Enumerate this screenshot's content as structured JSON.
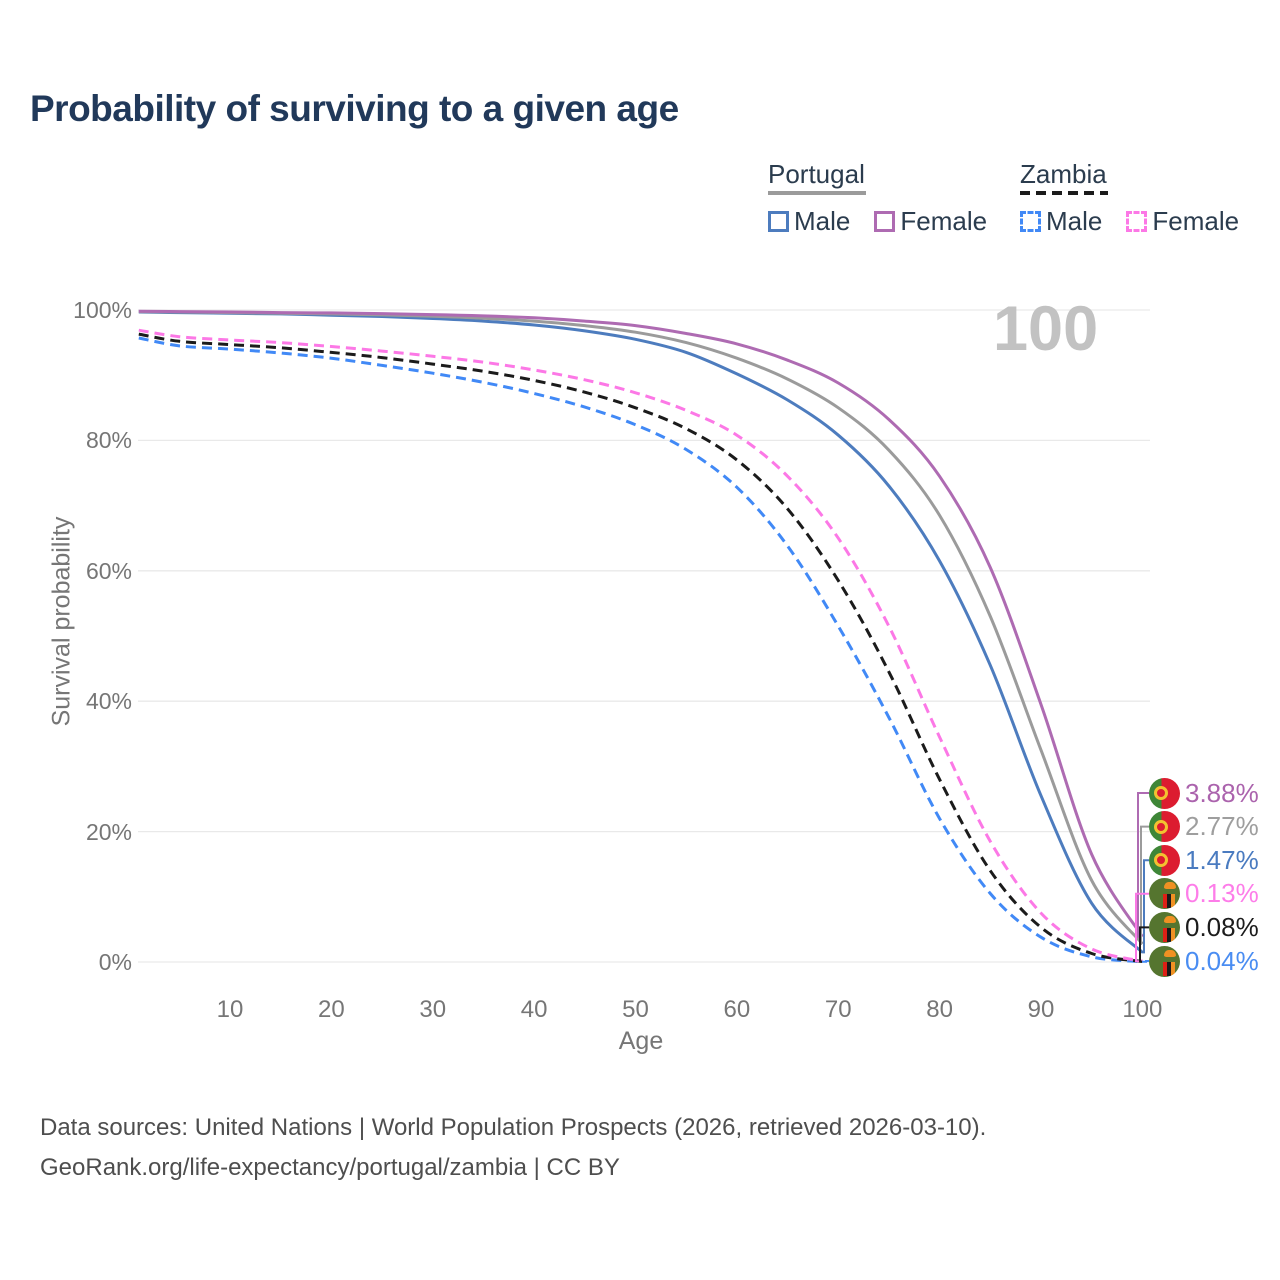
{
  "page": {
    "title": "Probability of surviving to a given age",
    "watermark_value": "100",
    "footer_line1": "Data sources: United Nations | World Population Prospects (2026, retrieved 2026-03-10).",
    "footer_line2": "GeoRank.org/life-expectancy/portugal/zambia | CC BY"
  },
  "legend": {
    "groups": [
      {
        "country": "Portugal",
        "line_style": "solid",
        "line_color": "#9b9b9b",
        "items": [
          {
            "label": "Male",
            "color": "#4d7cbe",
            "dashed": false
          },
          {
            "label": "Female",
            "color": "#ae6bb2",
            "dashed": false
          }
        ]
      },
      {
        "country": "Zambia",
        "line_style": "dashed",
        "line_color": "#1b1b1b",
        "items": [
          {
            "label": "Male",
            "color": "#4189f6",
            "dashed": true
          },
          {
            "label": "Female",
            "color": "#fc78e6",
            "dashed": true
          }
        ]
      }
    ]
  },
  "chart_data": {
    "type": "line",
    "title": "Probability of surviving to a given age",
    "xlabel": "Age",
    "ylabel": "Survival probability",
    "xlim": [
      1,
      100
    ],
    "ylim": [
      0,
      100
    ],
    "x_ticks": [
      10,
      20,
      30,
      40,
      50,
      60,
      70,
      80,
      90,
      100
    ],
    "y_ticks": [
      0,
      20,
      40,
      60,
      80,
      100
    ],
    "y_tick_labels": [
      "0%",
      "20%",
      "40%",
      "60%",
      "80%",
      "100%"
    ],
    "grid": "horizontal",
    "legend_position": "top-right",
    "highlighted_age_label": "100",
    "ages": [
      1,
      5,
      10,
      15,
      20,
      25,
      30,
      35,
      40,
      45,
      50,
      55,
      60,
      65,
      70,
      75,
      80,
      85,
      90,
      95,
      100
    ],
    "series": [
      {
        "name": "Zambia Male",
        "country": "Zambia",
        "sex": "Male",
        "color": "#4189f6",
        "dashed": true,
        "flag": "zambia",
        "end_label": "0.04%",
        "end_label_color": "#4a8df2",
        "values": [
          95.7,
          94.5,
          94.0,
          93.4,
          92.6,
          91.5,
          90.3,
          88.9,
          87.2,
          85.1,
          82.4,
          78.6,
          72.8,
          63.8,
          51.5,
          37.5,
          22.0,
          10.5,
          3.8,
          0.8,
          0.04
        ]
      },
      {
        "name": "Zambia",
        "country": "Zambia",
        "sex": "Both sexes",
        "color": "#1b1b1b",
        "dashed": true,
        "flag": "zambia",
        "end_label": "0.08%",
        "end_label_color": "#1c1c1c",
        "values": [
          96.3,
          95.2,
          94.7,
          94.2,
          93.5,
          92.7,
          91.7,
          90.6,
          89.2,
          87.4,
          85.0,
          81.8,
          77.0,
          69.5,
          58.5,
          44.5,
          28.0,
          14.0,
          5.3,
          1.3,
          0.08
        ]
      },
      {
        "name": "Zambia Female",
        "country": "Zambia",
        "sex": "Female",
        "color": "#fc78e6",
        "dashed": true,
        "flag": "zambia",
        "end_label": "0.13%",
        "end_label_color": "#fd7de9",
        "values": [
          96.9,
          95.9,
          95.4,
          95.0,
          94.4,
          93.7,
          92.9,
          92.0,
          90.8,
          89.3,
          87.3,
          84.6,
          80.8,
          74.5,
          65.0,
          51.5,
          34.5,
          18.5,
          7.5,
          2.0,
          0.13
        ]
      },
      {
        "name": "Portugal Male",
        "country": "Portugal",
        "sex": "Male",
        "color": "#4d7cbe",
        "dashed": false,
        "flag": "portugal",
        "end_label": "1.47%",
        "end_label_color": "#4a7bc0",
        "values": [
          99.7,
          99.6,
          99.5,
          99.4,
          99.2,
          99.0,
          98.7,
          98.3,
          97.7,
          96.8,
          95.5,
          93.5,
          90.2,
          86.2,
          80.8,
          73.0,
          61.5,
          45.5,
          25.5,
          9.0,
          1.47
        ]
      },
      {
        "name": "Portugal",
        "country": "Portugal",
        "sex": "Both sexes",
        "color": "#9b9b9b",
        "dashed": false,
        "flag": "portugal",
        "end_label": "2.77%",
        "end_label_color": "#9e9e9e",
        "values": [
          99.75,
          99.7,
          99.6,
          99.5,
          99.4,
          99.25,
          99.05,
          98.75,
          98.3,
          97.6,
          96.6,
          95.0,
          92.6,
          89.4,
          85.0,
          78.5,
          68.5,
          53.0,
          32.5,
          12.5,
          2.77
        ]
      },
      {
        "name": "Portugal Female",
        "country": "Portugal",
        "sex": "Female",
        "color": "#ae6bb2",
        "dashed": false,
        "flag": "portugal",
        "end_label": "3.88%",
        "end_label_color": "#ab63ad",
        "values": [
          99.8,
          99.75,
          99.7,
          99.6,
          99.55,
          99.45,
          99.3,
          99.1,
          98.8,
          98.3,
          97.6,
          96.4,
          94.8,
          92.3,
          88.8,
          83.2,
          74.5,
          60.5,
          39.5,
          16.5,
          3.88
        ]
      }
    ]
  }
}
